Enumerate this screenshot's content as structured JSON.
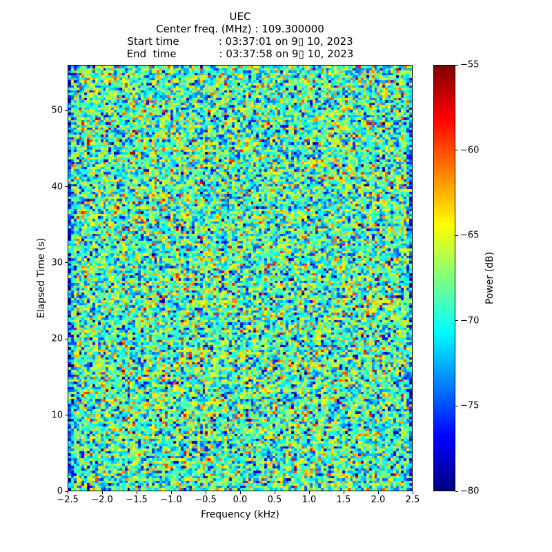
{
  "title": {
    "line1": "UEC",
    "line2": "Center freq. (MHz) : 109.300000",
    "line3": "Start time            : 03:37:01 on 9▯ 10, 2023",
    "line4": "End  time             : 03:37:58 on 9▯ 10, 2023"
  },
  "chart_data": {
    "type": "heatmap",
    "subtype": "spectrogram-waterfall",
    "title": "UEC",
    "subtitle_lines": [
      "Center freq. (MHz) : 109.300000",
      "Start time : 03:37:01 on 9▯ 10, 2023",
      "End time : 03:37:58 on 9▯ 10, 2023"
    ],
    "xlabel": "Frequency (kHz)",
    "ylabel": "Elapsed Time (s)",
    "xlim": [
      -2.5,
      2.5
    ],
    "ylim": [
      0,
      56
    ],
    "grid": false,
    "x_ticks": [
      {
        "value": -2.5,
        "label": "−2.5"
      },
      {
        "value": -2.0,
        "label": "−2.0"
      },
      {
        "value": -1.5,
        "label": "−1.5"
      },
      {
        "value": -1.0,
        "label": "−1.0"
      },
      {
        "value": -0.5,
        "label": "−0.5"
      },
      {
        "value": 0.0,
        "label": "0.0"
      },
      {
        "value": 0.5,
        "label": "0.5"
      },
      {
        "value": 1.0,
        "label": "1.0"
      },
      {
        "value": 1.5,
        "label": "1.5"
      },
      {
        "value": 2.0,
        "label": "2.0"
      },
      {
        "value": 2.5,
        "label": "2.5"
      }
    ],
    "y_ticks": [
      {
        "value": 0,
        "label": "0"
      },
      {
        "value": 10,
        "label": "10"
      },
      {
        "value": 20,
        "label": "20"
      },
      {
        "value": 30,
        "label": "30"
      },
      {
        "value": 40,
        "label": "40"
      },
      {
        "value": 50,
        "label": "50"
      }
    ],
    "colorbar": {
      "label": "Power (dB)",
      "clim": [
        -80,
        -55
      ],
      "ticks": [
        {
          "value": -55,
          "label": "−55"
        },
        {
          "value": -60,
          "label": "−60"
        },
        {
          "value": -65,
          "label": "−65"
        },
        {
          "value": -70,
          "label": "−70"
        },
        {
          "value": -75,
          "label": "−75"
        },
        {
          "value": -80,
          "label": "−80"
        }
      ]
    },
    "colormap": {
      "name": "jet",
      "stops": [
        "#000080",
        "#0000ff",
        "#00ffff",
        "#ffff00",
        "#ff0000",
        "#800000"
      ],
      "stop_positions": [
        0.0,
        0.125,
        0.375,
        0.625,
        0.875,
        1.0
      ]
    },
    "noise_model": {
      "description": "broadband noise floor, no visible signal",
      "mean_db": -68.8,
      "std_db": 4.2,
      "seed": 42,
      "cols": 128,
      "rows": 172,
      "edge_rolloff_db": [
        5,
        2
      ]
    }
  }
}
